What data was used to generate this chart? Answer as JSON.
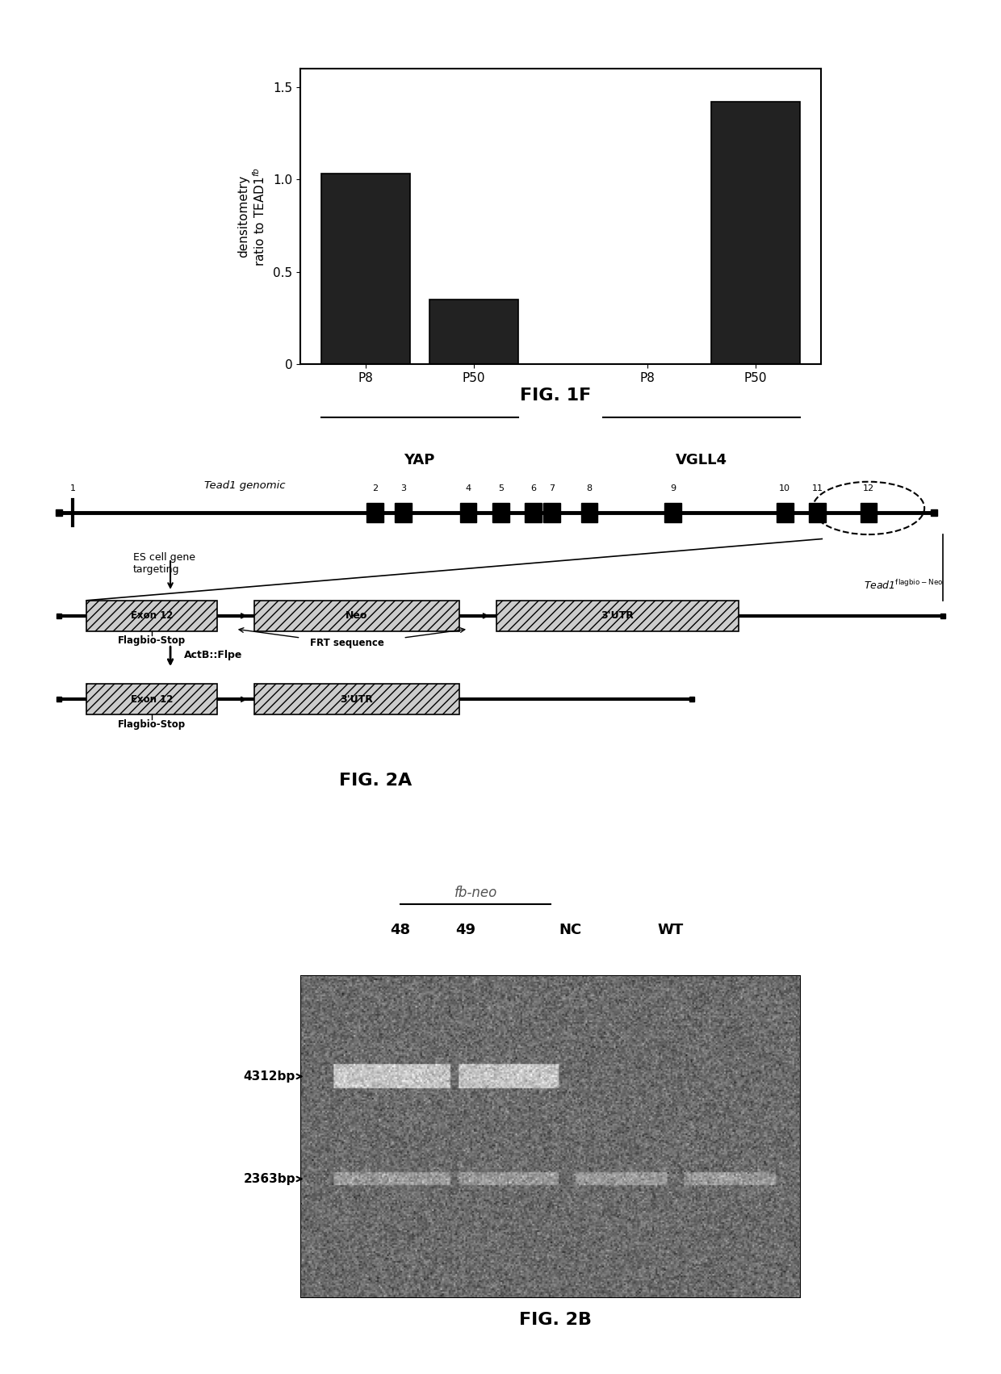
{
  "bar_values": [
    1.03,
    0.35,
    0.0,
    1.42
  ],
  "bar_labels": [
    "P8",
    "P50",
    "P8",
    "P50"
  ],
  "group_labels": [
    "YAP",
    "VGLL4"
  ],
  "ylabel_line1": "densitometry",
  "ylabel_line2": "ratio to TEAD1",
  "ylabel_super": "fb",
  "yticks": [
    0,
    0.5,
    1.0,
    1.5
  ],
  "bar_color": "#222222",
  "fig1f_title": "FIG. 1F",
  "fig2a_title": "FIG. 2A",
  "fig2b_title": "FIG. 2B",
  "bg_color": "#ffffff"
}
